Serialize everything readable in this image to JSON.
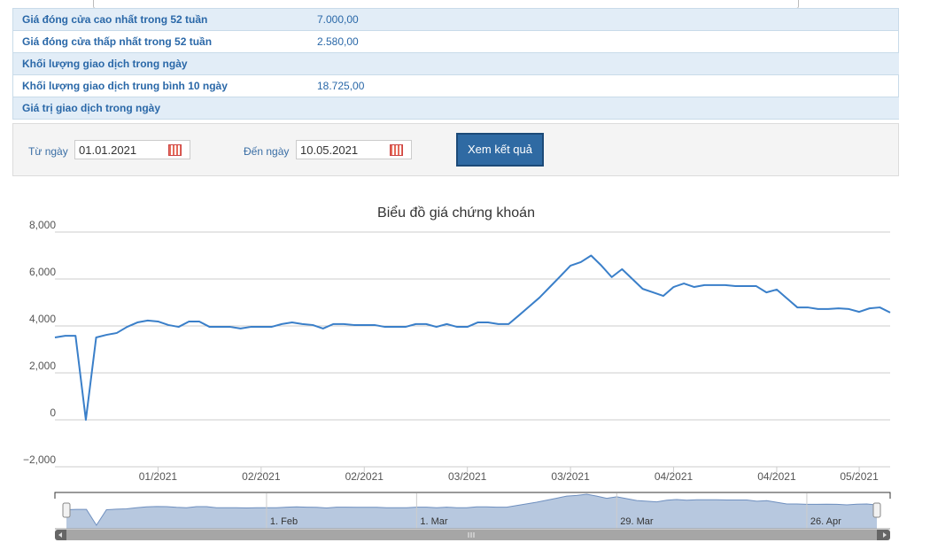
{
  "table": {
    "rows": [
      [
        "Giá đóng cửa cao nhất trong 52 tuần",
        "7.000,00"
      ],
      [
        "Giá đóng cửa thấp nhất trong 52 tuần",
        "2.580,00"
      ],
      [
        "Khối lượng giao dịch trong ngày"
      ],
      [
        "Khối lượng giao dịch trung bình 10 ngày",
        "18.725,00"
      ],
      [
        "Giá trị giao dịch trong ngày"
      ]
    ]
  },
  "form": {
    "from_label": "Từ ngày",
    "from_value": "01.01.2021",
    "to_label": "Đến ngày",
    "to_value": "10.05.2021",
    "button": "Xem kết quả"
  },
  "chart_data": {
    "type": "line",
    "title": "Biểu đồ giá chứng khoán",
    "color": "#3a7fc9",
    "categories": [
      null,
      null,
      null,
      null,
      null,
      null,
      null,
      null,
      null,
      null,
      "01/2021",
      null,
      null,
      null,
      null,
      null,
      null,
      null,
      null,
      null,
      "02/2021",
      null,
      null,
      null,
      null,
      null,
      null,
      null,
      null,
      null,
      "02/2021",
      null,
      null,
      null,
      null,
      null,
      null,
      null,
      null,
      null,
      "03/2021",
      null,
      null,
      null,
      null,
      null,
      null,
      null,
      null,
      null,
      "03/2021",
      null,
      null,
      null,
      null,
      null,
      null,
      null,
      null,
      null,
      "04/2021",
      null,
      null,
      null,
      null,
      null,
      null,
      null,
      null,
      null,
      "04/2021",
      null,
      null,
      null,
      null,
      null,
      null,
      null,
      "05/2021",
      null,
      null,
      null
    ],
    "navigator_categories": [
      null,
      null,
      null,
      null,
      null,
      null,
      null,
      null,
      null,
      null,
      null,
      null,
      null,
      null,
      null,
      null,
      null,
      null,
      null,
      null,
      "1. Feb",
      null,
      null,
      null,
      null,
      null,
      null,
      null,
      null,
      null,
      null,
      null,
      null,
      null,
      null,
      "1. Mar",
      null,
      null,
      null,
      null,
      null,
      null,
      null,
      null,
      null,
      null,
      null,
      null,
      null,
      null,
      null,
      null,
      null,
      null,
      null,
      "29. Mar",
      null,
      null,
      null,
      null,
      null,
      null,
      null,
      null,
      null,
      null,
      null,
      null,
      null,
      null,
      null,
      null,
      null,
      null,
      "26. Apr",
      null,
      null,
      null,
      null,
      null,
      null,
      null
    ],
    "values": [
      3510,
      3580,
      3580,
      0,
      3510,
      3620,
      3700,
      3960,
      4150,
      4230,
      4190,
      4040,
      3960,
      4190,
      4190,
      3960,
      3960,
      3960,
      3890,
      3960,
      3960,
      3960,
      4080,
      4150,
      4080,
      4040,
      3890,
      4080,
      4080,
      4040,
      4040,
      4040,
      3960,
      3960,
      3960,
      4080,
      4080,
      3960,
      4080,
      3960,
      3960,
      4150,
      4150,
      4080,
      4080,
      4450,
      4830,
      5210,
      5660,
      6110,
      6570,
      6720,
      7000,
      6570,
      6080,
      6420,
      6000,
      5580,
      5430,
      5280,
      5660,
      5810,
      5660,
      5740,
      5740,
      5740,
      5700,
      5700,
      5700,
      5430,
      5550,
      5170,
      4790,
      4790,
      4720,
      4720,
      4750,
      4720,
      4600,
      4750,
      4790,
      4570
    ],
    "ylim": [
      -2000,
      8000
    ],
    "yticks": [
      {
        "value": -2000,
        "label": "−2,000"
      },
      0,
      {
        "value": 2000,
        "label": "2,000"
      },
      {
        "value": 4000,
        "label": "4,000"
      },
      {
        "value": 6000,
        "label": "6,000"
      },
      {
        "value": 8000,
        "label": "8,000"
      }
    ],
    "grid": true
  }
}
